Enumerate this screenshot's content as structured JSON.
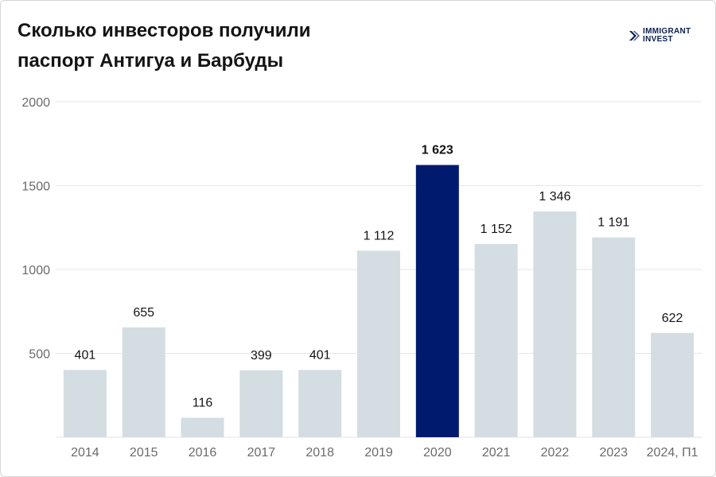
{
  "title_lines": [
    "Сколько инвесторов получили",
    "паспорт Антигуа и Барбуды"
  ],
  "logo": {
    "line1": "IMMIGRANT",
    "line2": "INVEST",
    "icon": "immigrant-invest-logo-icon"
  },
  "colors": {
    "bar": "#d3dde2",
    "highlight": "#001a6e",
    "text": "#141414",
    "axis_text": "#6b6b6b",
    "grid": "#e6e6e6"
  },
  "chart_data": {
    "type": "bar",
    "title": "Сколько инвесторов получили паспорт Антигуа и Барбуды",
    "categories": [
      "2014",
      "2015",
      "2016",
      "2017",
      "2018",
      "2019",
      "2020",
      "2021",
      "2022",
      "2023",
      "2024, П1"
    ],
    "values": [
      401,
      655,
      116,
      399,
      401,
      1112,
      1623,
      1152,
      1346,
      1191,
      622
    ],
    "value_labels": [
      "401",
      "655",
      "116",
      "399",
      "401",
      "1 112",
      "1 623",
      "1 152",
      "1 346",
      "1 191",
      "622"
    ],
    "highlight_category": "2020",
    "yticks": [
      500,
      1000,
      1500,
      2000
    ],
    "ylim": [
      0,
      2000
    ],
    "xlabel": "",
    "ylabel": "",
    "grid": true,
    "legend": "none"
  }
}
